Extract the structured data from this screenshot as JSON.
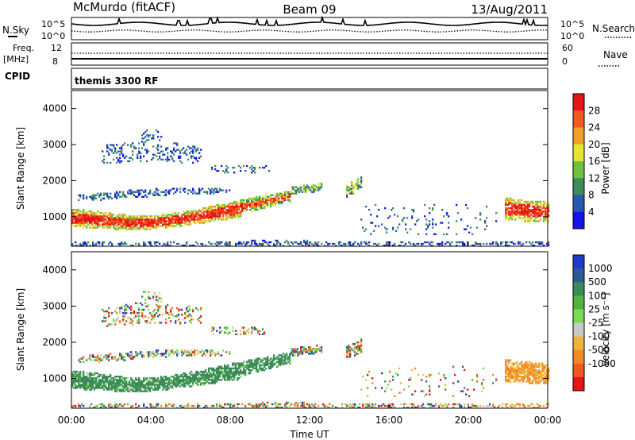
{
  "header": {
    "station": "McMurdo (fitACF)",
    "beam": "Beam 09",
    "date": "13/Aug/2011",
    "cpid_label": "CPID",
    "program": "themis 3300 RF"
  },
  "noise_panel": {
    "left_label": "N.Sky",
    "right_label": "N.Search",
    "ticks_left": [
      "10^5",
      "10^0"
    ],
    "ticks_right": [
      "10^5",
      "10^0"
    ]
  },
  "freq_panel": {
    "left_label_1": "Freq.",
    "left_label_2": "[MHz]",
    "right_label": "Nave",
    "ticks_left": [
      "12",
      "8"
    ],
    "ticks_right": [
      "60",
      "0"
    ]
  },
  "chart_data": [
    {
      "type": "heatmap",
      "name": "power",
      "ylabel": "Slant Range [km]",
      "xlabel": "",
      "ylim": [
        180,
        4500
      ],
      "yticks": [
        1000,
        2000,
        3000,
        4000
      ],
      "x_ticks": [
        "00:00",
        "04:00",
        "08:00",
        "12:00",
        "16:00",
        "20:00",
        "00:00"
      ],
      "colorbar_label": "Power [dB]",
      "colorbar_ticks": [
        "4",
        "8",
        "12",
        "16",
        "20",
        "24",
        "28"
      ],
      "colors": [
        "#1414e6",
        "#2858b0",
        "#3c8c5a",
        "#6cc23c",
        "#e6e632",
        "#f0a028",
        "#f05a1e",
        "#e61414"
      ]
    },
    {
      "type": "heatmap",
      "name": "velocity",
      "ylabel": "Slant Range [km]",
      "xlabel": "Time UT",
      "ylim": [
        180,
        4500
      ],
      "yticks": [
        1000,
        2000,
        3000,
        4000
      ],
      "x_ticks": [
        "00:00",
        "04:00",
        "08:00",
        "12:00",
        "16:00",
        "20:00",
        "00:00"
      ],
      "colorbar_label": "Velocity [m s⁻¹]",
      "colorbar_ticks": [
        "1000",
        "500",
        "100",
        "25",
        "-25",
        "-100",
        "-500",
        "-1000"
      ],
      "colors": [
        "#1e3cc8",
        "#2c5a96",
        "#3c8c5a",
        "#50b43c",
        "#78dc50",
        "#c8c8c8",
        "#f0b43c",
        "#f08c28",
        "#f05a1e",
        "#e61414"
      ]
    }
  ]
}
